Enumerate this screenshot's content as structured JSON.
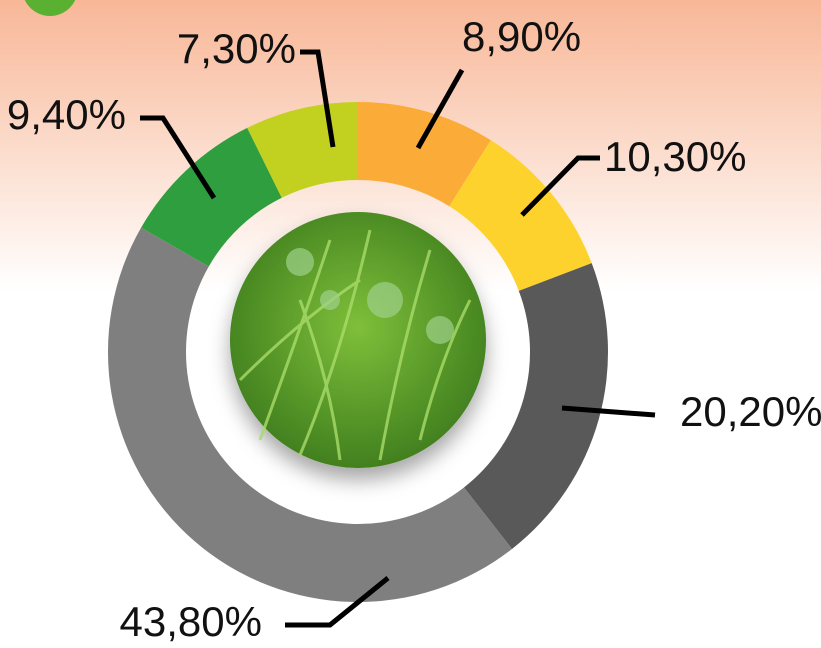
{
  "chart_data": {
    "type": "donut",
    "values": [
      8.9,
      10.3,
      20.2,
      43.8,
      9.4,
      7.3
    ],
    "value_labels": [
      "8,90%",
      "10,30%",
      "20,20%",
      "43,80%",
      "9,40%",
      "7,30%"
    ],
    "colors": [
      "#fbab38",
      "#fdd22c",
      "#595959",
      "#7f7f7f",
      "#2f9e3e",
      "#c2d11f"
    ]
  }
}
